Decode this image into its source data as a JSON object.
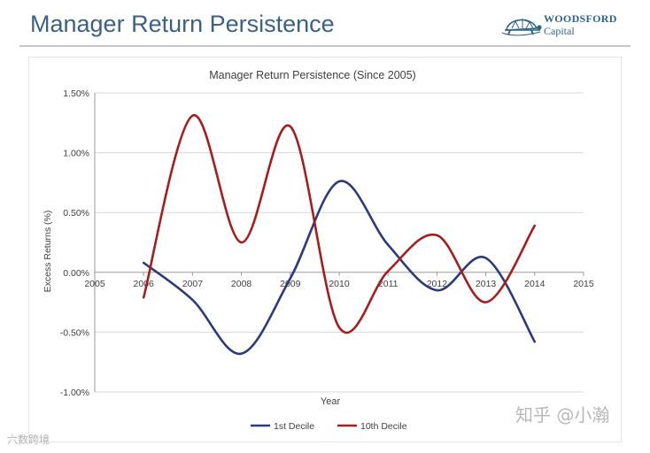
{
  "header": {
    "title": "Manager Return Persistence",
    "logo_line1": "WOODSFORD",
    "logo_line2": "Capital"
  },
  "watermarks": {
    "zhihu": "知乎 @小瀚",
    "corner": "六数跨境"
  },
  "chart_data": {
    "type": "line",
    "title": "Manager Return Persistence (Since 2005)",
    "xlabel": "Year",
    "ylabel": "Excess Returns (%)",
    "xlim": [
      2005,
      2015
    ],
    "ylim": [
      -1.0,
      1.5
    ],
    "x_ticks": [
      "2005",
      "2006",
      "2007",
      "2008",
      "2009",
      "2010",
      "2011",
      "2012",
      "2013",
      "2014",
      "2015"
    ],
    "y_ticks": [
      "-1.00%",
      "-0.50%",
      "0.00%",
      "0.50%",
      "1.00%",
      "1.50%"
    ],
    "grid": true,
    "legend_position": "bottom",
    "series": [
      {
        "name": "1st Decile",
        "color": "#2b3a7e",
        "x": [
          2006,
          2007,
          2008,
          2009,
          2010,
          2011,
          2012,
          2013,
          2014
        ],
        "y": [
          0.08,
          -0.23,
          -0.68,
          -0.05,
          0.76,
          0.23,
          -0.15,
          0.12,
          -0.58
        ]
      },
      {
        "name": "10th Decile",
        "color": "#a81c1c",
        "x": [
          2006,
          2007,
          2008,
          2009,
          2010,
          2011,
          2012,
          2013,
          2014
        ],
        "y": [
          -0.21,
          1.31,
          0.25,
          1.22,
          -0.46,
          0.01,
          0.31,
          -0.25,
          0.39
        ]
      }
    ]
  }
}
